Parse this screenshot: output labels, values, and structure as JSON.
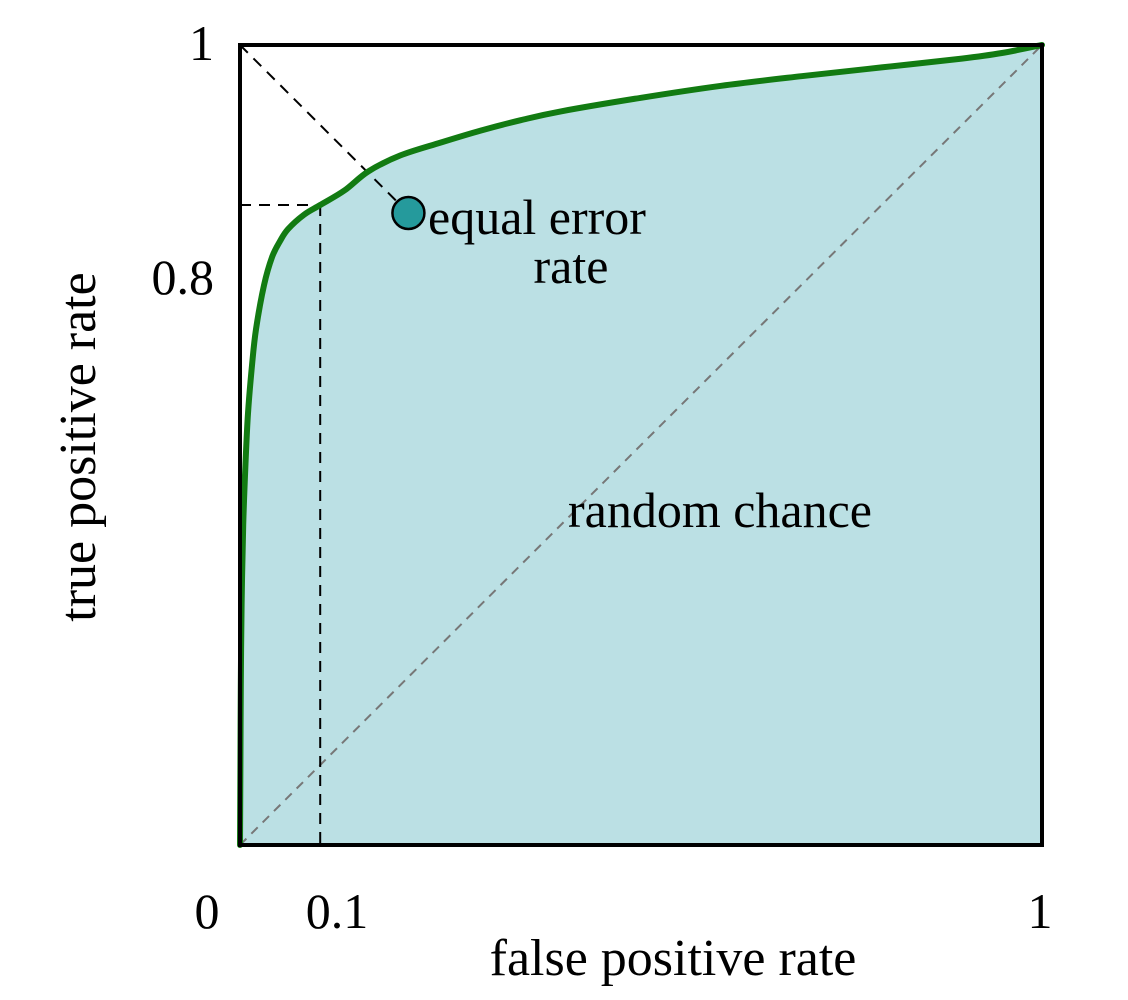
{
  "chart_data": {
    "type": "line",
    "xlabel": "false positive rate",
    "ylabel": "true positive rate",
    "xlim": [
      0,
      1
    ],
    "ylim": [
      0,
      1
    ],
    "x_ticks": [
      {
        "value": 0,
        "label": "0"
      },
      {
        "value": 0.1,
        "label": "0.1"
      },
      {
        "value": 1,
        "label": "1"
      }
    ],
    "y_ticks": [
      {
        "value": 0.8,
        "label": "0.8"
      },
      {
        "value": 1,
        "label": "1"
      }
    ],
    "grid": false,
    "series": [
      {
        "role": "roc-curve",
        "color": "#127b12",
        "fill": "#bbe0e4",
        "x": [
          0,
          0.0005,
          0.001,
          0.002,
          0.004,
          0.007,
          0.01,
          0.015,
          0.02,
          0.03,
          0.04,
          0.05,
          0.06,
          0.08,
          0.1,
          0.13,
          0.16,
          0.2,
          0.25,
          0.3,
          0.35,
          0.4,
          0.5,
          0.6,
          0.7,
          0.8,
          0.9,
          0.95,
          1
        ],
        "y": [
          0,
          0.1,
          0.2,
          0.3,
          0.4,
          0.48,
          0.54,
          0.6,
          0.645,
          0.7,
          0.735,
          0.755,
          0.77,
          0.788,
          0.8,
          0.818,
          0.842,
          0.862,
          0.878,
          0.893,
          0.906,
          0.917,
          0.934,
          0.949,
          0.961,
          0.972,
          0.983,
          0.99,
          1
        ]
      },
      {
        "role": "random-chance-diagonal",
        "style": "dashed",
        "color": "#777777",
        "x": [
          0,
          1
        ],
        "y": [
          0,
          1
        ]
      },
      {
        "role": "equal-error-rate-diagonal",
        "style": "dashed",
        "color": "#000000",
        "x": [
          0,
          0.21
        ],
        "y": [
          1,
          0.79
        ]
      }
    ],
    "reference_lines": {
      "x": 0.1,
      "y": 0.8,
      "style": "dashed"
    },
    "marker": {
      "x": 0.21,
      "y": 0.79,
      "color": "#259a9c"
    },
    "annotations": {
      "eer_line1": "equal error",
      "eer_line2": "rate",
      "random": "random chance"
    }
  }
}
